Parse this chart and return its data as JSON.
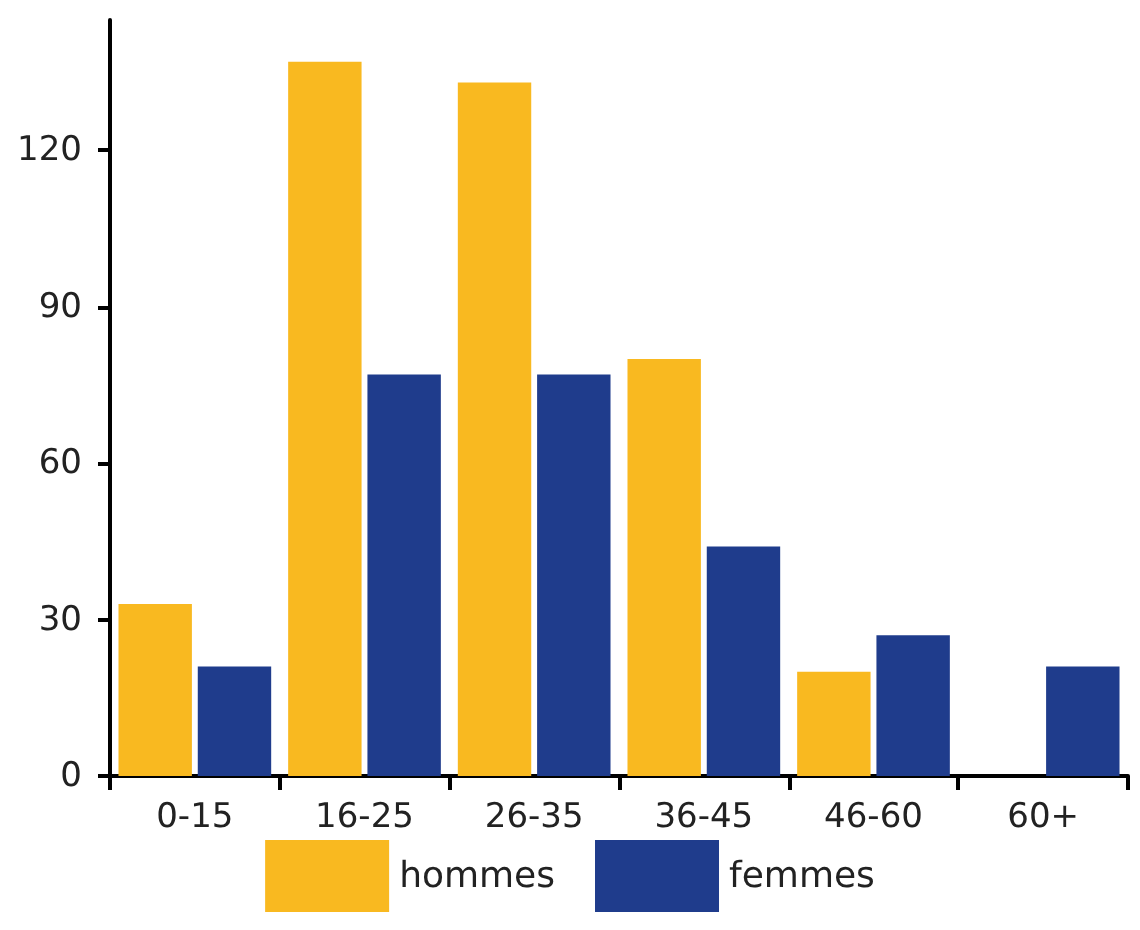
{
  "chart_data": {
    "type": "bar",
    "categories": [
      "0-15",
      "16-25",
      "26-35",
      "36-45",
      "46-60",
      "60+"
    ],
    "series": [
      {
        "name": "hommes",
        "color": "#f9b920",
        "values": [
          33,
          137,
          133,
          80,
          20,
          0
        ]
      },
      {
        "name": "femmes",
        "color": "#1f3c8c",
        "values": [
          21,
          77,
          77,
          44,
          27,
          21
        ]
      }
    ],
    "ylim": [
      0,
      145
    ],
    "yticks": [
      0,
      30,
      60,
      90,
      120
    ],
    "grid": false,
    "legend": "bottom"
  }
}
